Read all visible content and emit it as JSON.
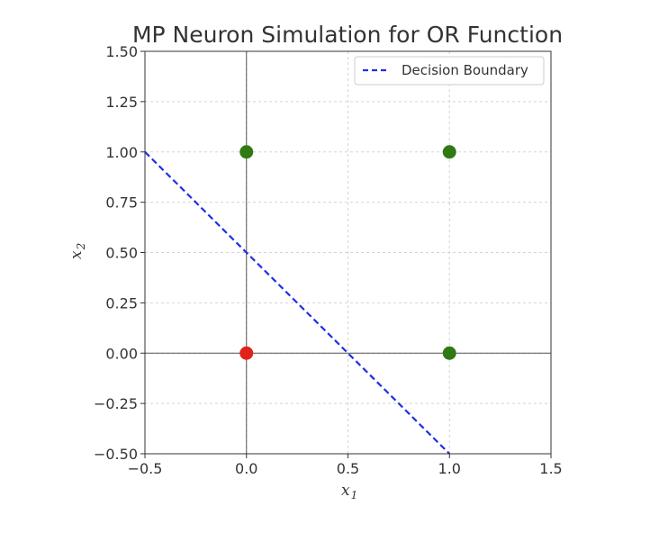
{
  "chart_data": {
    "type": "scatter",
    "title": "MP Neuron Simulation for OR Function",
    "xlabel": "x",
    "xlabel_sub": "1",
    "ylabel": "x",
    "ylabel_sub": "2",
    "xlim": [
      -0.5,
      1.5
    ],
    "ylim": [
      -0.5,
      1.5
    ],
    "x_ticks": [
      -0.5,
      0.0,
      0.5,
      1.0,
      1.5
    ],
    "x_tick_labels": [
      "−0.5",
      "0.0",
      "0.5",
      "1.0",
      "1.5"
    ],
    "y_ticks": [
      -0.5,
      -0.25,
      0.0,
      0.25,
      0.5,
      0.75,
      1.0,
      1.25,
      1.5
    ],
    "y_tick_labels": [
      "−0.50",
      "−0.25",
      "0.00",
      "0.25",
      "0.50",
      "0.75",
      "1.00",
      "1.25",
      "1.50"
    ],
    "grid": true,
    "points": [
      {
        "x": 0,
        "y": 0,
        "color": "#e0221a"
      },
      {
        "x": 0,
        "y": 1,
        "color": "#2f7a12"
      },
      {
        "x": 1,
        "y": 0,
        "color": "#2f7a12"
      },
      {
        "x": 1,
        "y": 1,
        "color": "#2f7a12"
      }
    ],
    "lines": [
      {
        "name": "Decision Boundary",
        "style": "dashed",
        "color": "#1f2ee8",
        "x": [
          -0.5,
          1.0
        ],
        "y": [
          1.0,
          -0.5
        ]
      }
    ],
    "legend": {
      "position": "top-right",
      "entries": [
        "Decision Boundary"
      ]
    }
  }
}
